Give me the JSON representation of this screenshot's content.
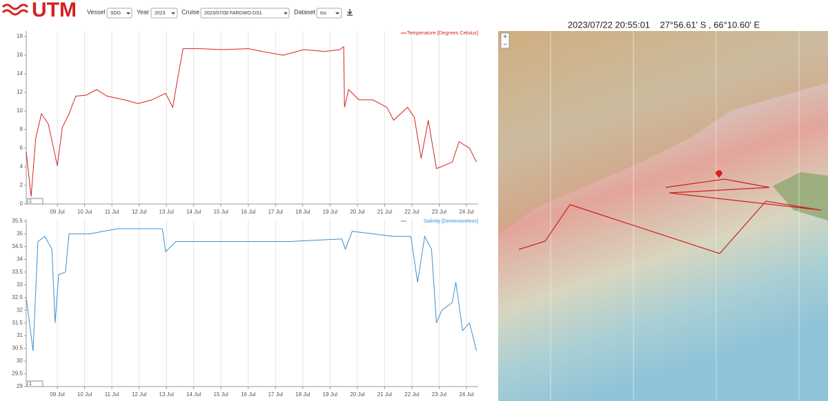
{
  "header": {
    "logo": "UTM",
    "controls": [
      {
        "label": "Vessel",
        "value": "SDG"
      },
      {
        "label": "Year",
        "value": "2023"
      },
      {
        "label": "Cruise",
        "value": "2023/07/08 FARDWO-DS1"
      },
      {
        "label": "Dataset",
        "value": "tss"
      }
    ]
  },
  "range_inputs": [
    "1",
    "1"
  ],
  "map": {
    "title": "2023/07/22 20:55:01    27°56.61' S , 66°10.60' E",
    "zoom_in": "+",
    "zoom_out": "−"
  },
  "chart_data": [
    {
      "type": "line",
      "grid": true,
      "legend": "top-right",
      "x": [
        7.86,
        8.04,
        8.21,
        8.42,
        8.67,
        9.0,
        9.18,
        9.43,
        9.68,
        10.06,
        10.44,
        10.82,
        11.46,
        11.96,
        12.47,
        12.97,
        13.23,
        13.43,
        13.61,
        14.24,
        15.0,
        16.01,
        16.52,
        17.28,
        18.04,
        18.8,
        19.35,
        19.5,
        19.53,
        19.68,
        20.06,
        20.57,
        21.08,
        21.33,
        21.84,
        22.09,
        22.34,
        22.6,
        22.9,
        23.48,
        23.73,
        24.11,
        24.37
      ],
      "series": [
        {
          "name": "Temperature [Degrees Celsius]",
          "color": "#d62020",
          "values": [
            5.6,
            0.8,
            7.1,
            9.7,
            8.6,
            4.1,
            8.2,
            9.7,
            11.6,
            11.7,
            12.3,
            11.6,
            11.2,
            10.8,
            11.2,
            11.9,
            10.4,
            13.8,
            16.7,
            16.7,
            16.6,
            16.7,
            16.4,
            16.0,
            16.6,
            16.4,
            16.6,
            16.9,
            10.4,
            12.3,
            11.2,
            11.2,
            10.4,
            9.0,
            10.4,
            9.3,
            4.9,
            9.0,
            3.8,
            4.5,
            6.7,
            6.0,
            4.5
          ]
        }
      ],
      "xlim": [
        7.86,
        24.43
      ],
      "xticks": [
        {
          "value": 9,
          "label": "09 Jul"
        },
        {
          "value": 10,
          "label": "10 Jul"
        },
        {
          "value": 11,
          "label": "11 Jul"
        },
        {
          "value": 12,
          "label": "12 Jul"
        },
        {
          "value": 13,
          "label": "13 Jul"
        },
        {
          "value": 14,
          "label": "14 Jul"
        },
        {
          "value": 15,
          "label": "15 Jul"
        },
        {
          "value": 16,
          "label": "16 Jul"
        },
        {
          "value": 17,
          "label": "17 Jul"
        },
        {
          "value": 18,
          "label": "18 Jul"
        },
        {
          "value": 19,
          "label": "19 Jul"
        },
        {
          "value": 20,
          "label": "20 Jul"
        },
        {
          "value": 21,
          "label": "21 Jul"
        },
        {
          "value": 22,
          "label": "22 Jul"
        },
        {
          "value": 23,
          "label": "23 Jul"
        },
        {
          "value": 24,
          "label": "24 Jul"
        }
      ],
      "ylim": [
        0,
        18.6
      ],
      "yticks": [
        0,
        2,
        4,
        6,
        8,
        10,
        12,
        14,
        16,
        18
      ]
    },
    {
      "type": "line",
      "grid": true,
      "legend": "top-right",
      "x": [
        7.86,
        8.11,
        8.29,
        8.54,
        8.8,
        8.92,
        9.05,
        9.3,
        9.43,
        10.19,
        11.2,
        11.96,
        12.85,
        12.97,
        13.35,
        13.99,
        15.76,
        17.53,
        19.43,
        19.56,
        19.81,
        20.57,
        21.33,
        21.96,
        22.21,
        22.47,
        22.72,
        22.9,
        23.1,
        23.48,
        23.61,
        23.86,
        24.11,
        24.37
      ],
      "series": [
        {
          "name": "Salinity [Dimensionless]",
          "color": "#3b8fd0",
          "values": [
            32.5,
            30.4,
            34.7,
            34.9,
            34.4,
            31.5,
            33.4,
            33.5,
            35.0,
            35.0,
            35.2,
            35.2,
            35.2,
            34.3,
            34.7,
            34.7,
            34.7,
            34.7,
            34.8,
            34.4,
            35.1,
            35.0,
            34.9,
            34.9,
            33.1,
            34.9,
            34.4,
            31.5,
            32.0,
            32.3,
            33.1,
            31.2,
            31.5,
            30.4
          ]
        }
      ],
      "xlim": [
        7.86,
        24.43
      ],
      "xticks": [
        {
          "value": 9,
          "label": "09 Jul"
        },
        {
          "value": 10,
          "label": "10 Jul"
        },
        {
          "value": 11,
          "label": "11 Jul"
        },
        {
          "value": 12,
          "label": "12 Jul"
        },
        {
          "value": 13,
          "label": "13 Jul"
        },
        {
          "value": 14,
          "label": "14 Jul"
        },
        {
          "value": 15,
          "label": "15 Jul"
        },
        {
          "value": 16,
          "label": "16 Jul"
        },
        {
          "value": 17,
          "label": "17 Jul"
        },
        {
          "value": 18,
          "label": "18 Jul"
        },
        {
          "value": 19,
          "label": "19 Jul"
        },
        {
          "value": 20,
          "label": "20 Jul"
        },
        {
          "value": 21,
          "label": "21 Jul"
        },
        {
          "value": 22,
          "label": "22 Jul"
        },
        {
          "value": 23,
          "label": "23 Jul"
        },
        {
          "value": 24,
          "label": "24 Jul"
        }
      ],
      "ylim": [
        29,
        35.58
      ],
      "yticks": [
        29,
        29.5,
        30,
        30.5,
        31,
        31.5,
        32,
        32.5,
        33,
        33.5,
        34,
        34.5,
        35,
        35.5
      ]
    }
  ]
}
